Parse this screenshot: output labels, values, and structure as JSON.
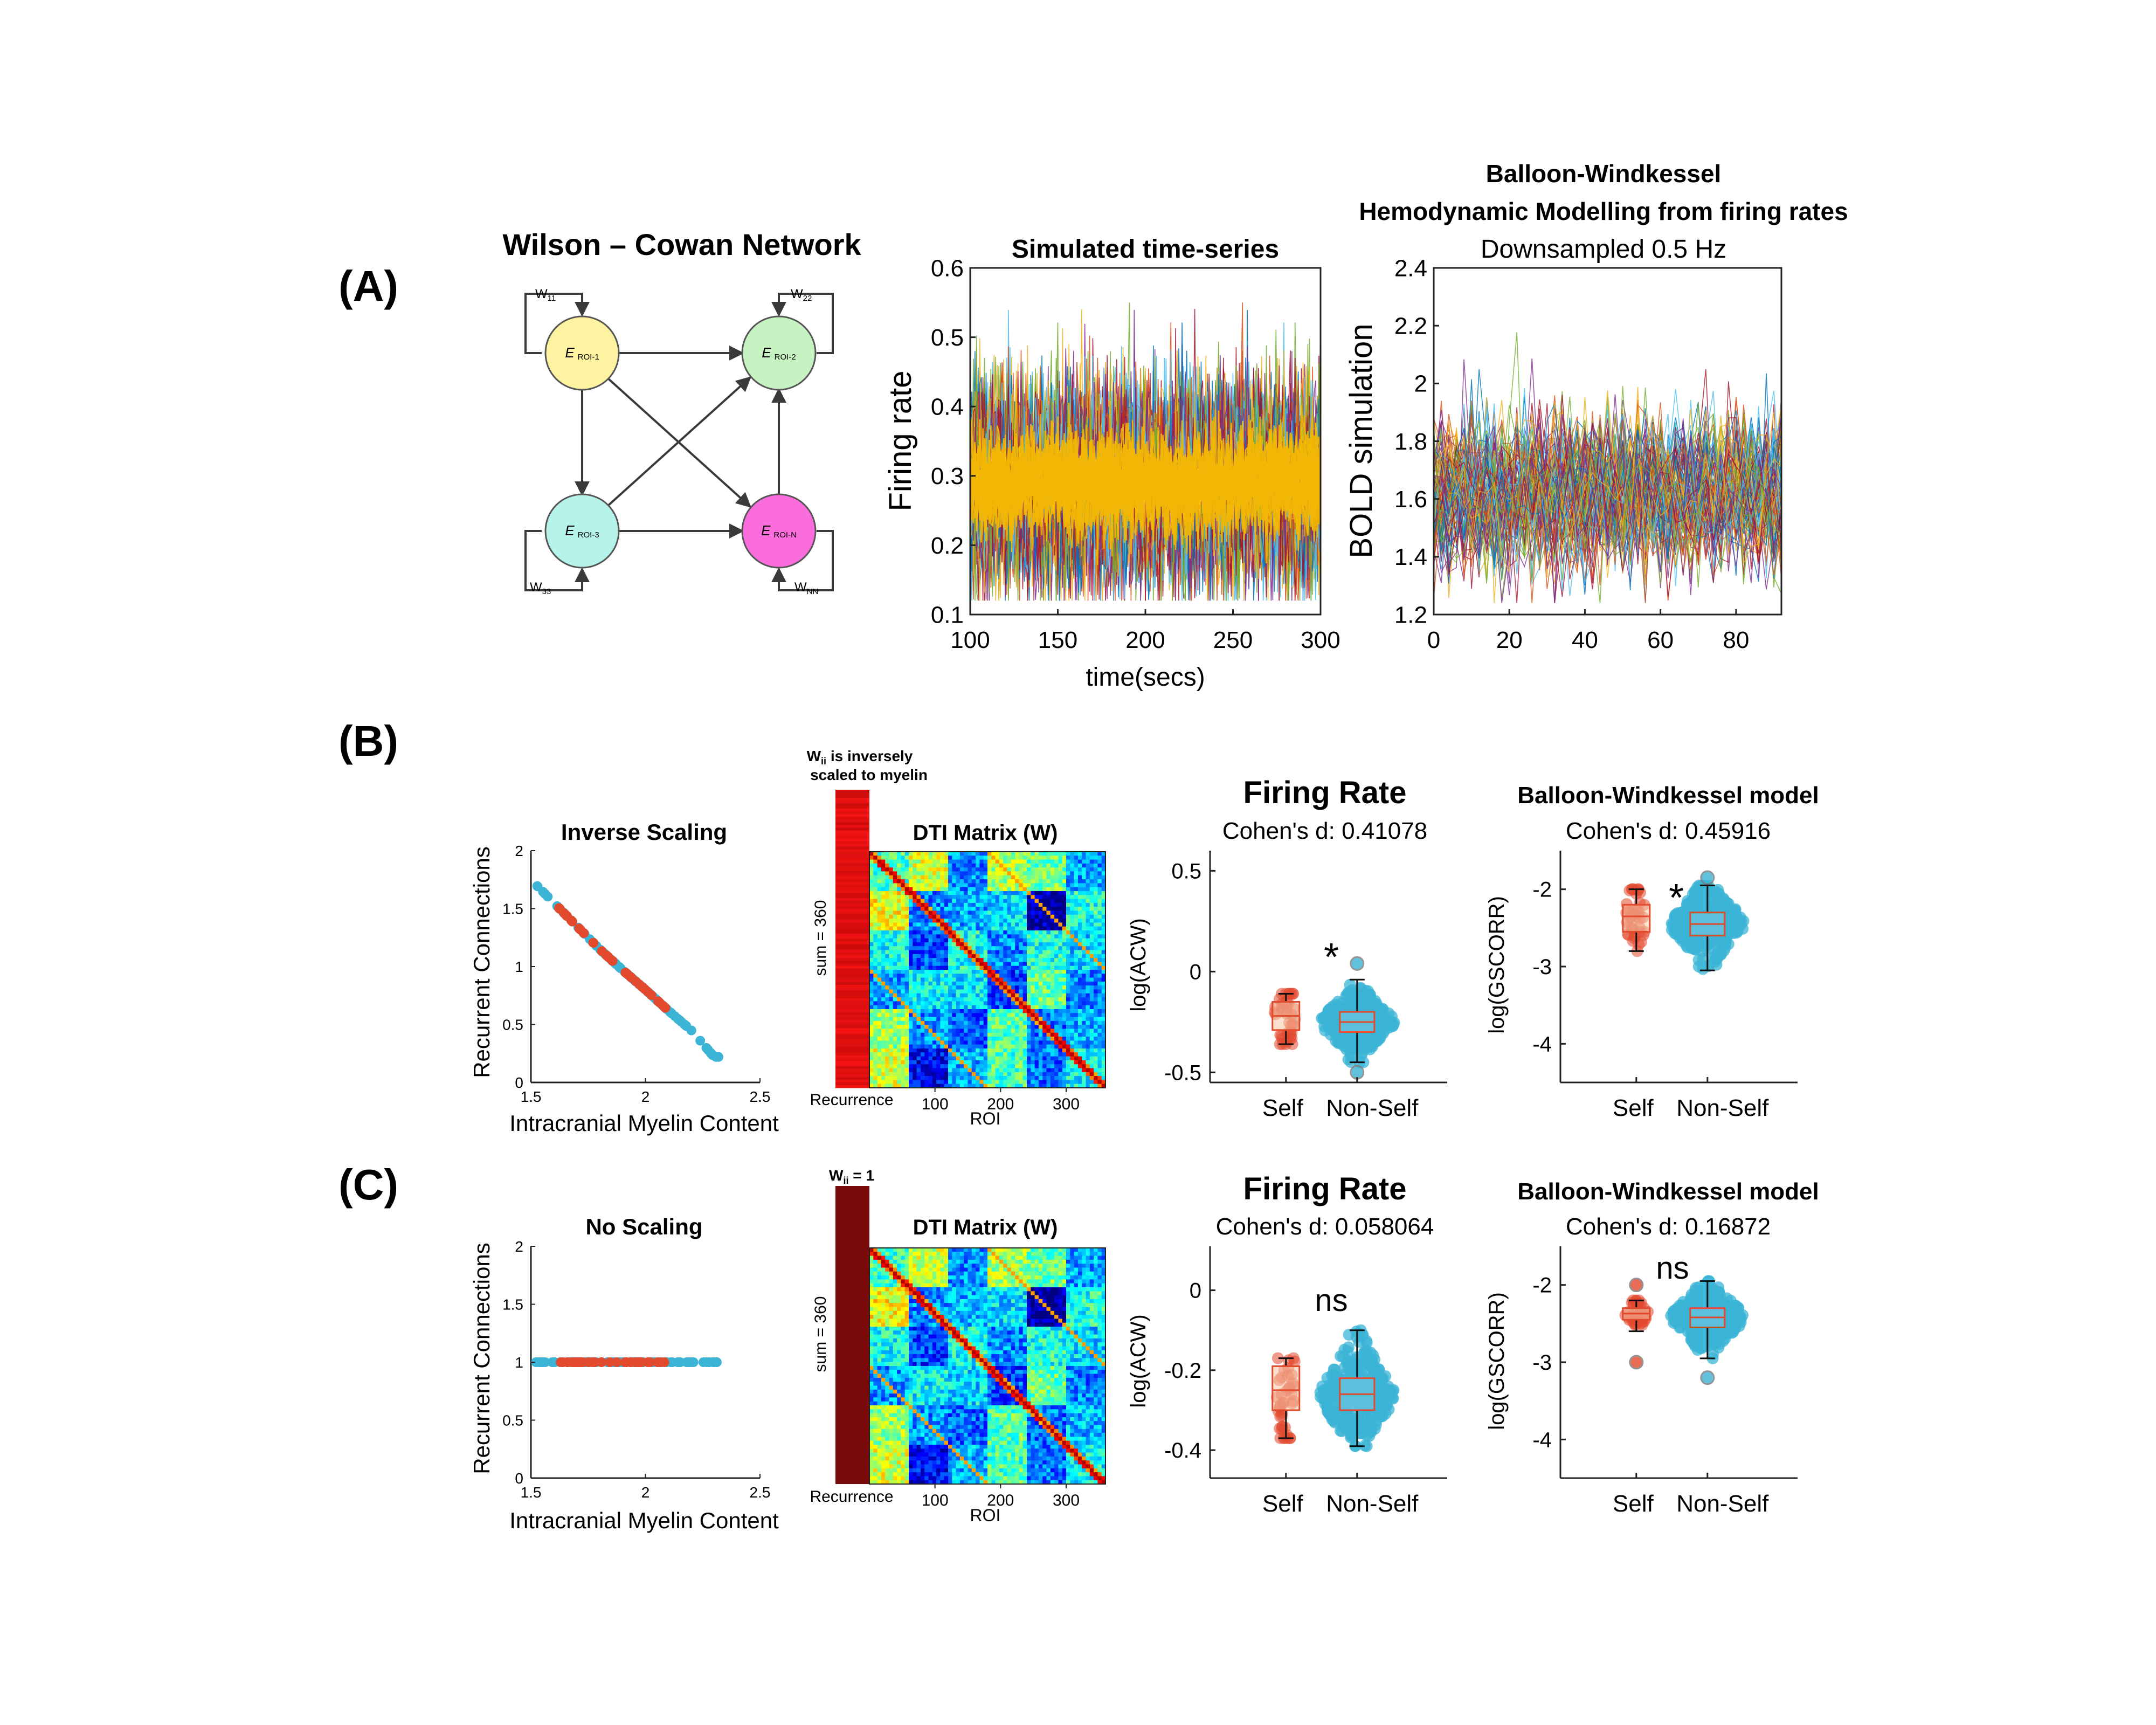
{
  "colors": {
    "self": "#e2492d",
    "nonself": "#3bb4d6",
    "firing_fill": "#f2b705",
    "node_roi1": "#fdf3a0",
    "node_roi2": "#c7f2c2",
    "node_roi3": "#b5f3eb",
    "node_roin": "#fb6cdc",
    "recurrence_b": "#c31616",
    "recurrence_c": "#7a0a0a"
  },
  "panel_labels": {
    "a": "(A)",
    "b": "(B)",
    "c": "(C)"
  },
  "network": {
    "title": "Wilson – Cowan Network",
    "nodes": [
      {
        "id": "roi1",
        "label": "E",
        "sub": "ROI-1",
        "weight": "W",
        "weight_sub": "11"
      },
      {
        "id": "roi2",
        "label": "E",
        "sub": "ROI-2",
        "weight": "W",
        "weight_sub": "22"
      },
      {
        "id": "roi3",
        "label": "E",
        "sub": "ROI-3",
        "weight": "W",
        "weight_sub": "33"
      },
      {
        "id": "roin",
        "label": "E",
        "sub": "ROI-N",
        "weight": "W",
        "weight_sub": "NN"
      }
    ]
  },
  "timeseries": {
    "title": "Simulated time-series",
    "xlabel": "time(secs)",
    "ylabel": "Firing rate",
    "xticks": [
      "100",
      "150",
      "200",
      "250",
      "300"
    ],
    "yticks": [
      "0.1",
      "0.2",
      "0.3",
      "0.4",
      "0.5",
      "0.6"
    ]
  },
  "bold": {
    "title1": "Balloon-Windkessel",
    "title2": "Hemodynamic Modelling from firing rates",
    "subtitle": "Downsampled 0.5 Hz",
    "ylabel": "BOLD simulation",
    "xticks": [
      "0",
      "20",
      "40",
      "60",
      "80"
    ],
    "yticks": [
      "1.2",
      "1.4",
      "1.6",
      "1.8",
      "2",
      "2.2",
      "2.4"
    ]
  },
  "row_b": {
    "scatter": {
      "title": "Inverse Scaling",
      "xlabel": "Intracranial Myelin Content",
      "ylabel": "Recurrent Connections"
    },
    "matrix": {
      "note1": "W",
      "note_sub": "ii",
      "note2": " is inversely",
      "note3": "scaled to myelin",
      "title": "DTI Matrix (W)",
      "side_label": "sum = 360",
      "recurrence": "Recurrence",
      "xlabel": "ROI",
      "xticks": [
        "100",
        "200",
        "300"
      ]
    },
    "box1": {
      "title": "Firing Rate",
      "subtitle": "Cohen's d: 0.41078",
      "ylabel": "log(ACW)",
      "xticks": [
        "Self",
        "Non-Self"
      ],
      "yticks": [
        "-0.5",
        "0",
        "0.5"
      ],
      "sig": "*"
    },
    "box2": {
      "title": "Balloon-Windkessel model",
      "subtitle": "Cohen's d: 0.45916",
      "ylabel": "log(GSCORR)",
      "xticks": [
        "Self",
        "Non-Self"
      ],
      "yticks": [
        "-4",
        "-3",
        "-2"
      ],
      "sig": "*"
    }
  },
  "row_c": {
    "scatter": {
      "title": "No Scaling",
      "xlabel": "Intracranial Myelin Content",
      "ylabel": "Recurrent Connections"
    },
    "matrix": {
      "note1": "W",
      "note_sub": "ii",
      "note2": " = 1",
      "title": "DTI Matrix (W)",
      "side_label": "sum = 360",
      "recurrence": "Recurrence",
      "xlabel": "ROI",
      "xticks": [
        "100",
        "200",
        "300"
      ]
    },
    "box1": {
      "title": "Firing Rate",
      "subtitle": "Cohen's d: 0.058064",
      "ylabel": "log(ACW)",
      "xticks": [
        "Self",
        "Non-Self"
      ],
      "yticks": [
        "-0.4",
        "-0.2",
        "0"
      ],
      "sig": "ns"
    },
    "box2": {
      "title": "Balloon-Windkessel model",
      "subtitle": "Cohen's d: 0.16872",
      "ylabel": "log(GSCORR)",
      "xticks": [
        "Self",
        "Non-Self"
      ],
      "yticks": [
        "-4",
        "-3",
        "-2"
      ],
      "sig": "ns"
    }
  },
  "chart_data": [
    {
      "type": "line",
      "id": "firing-timeseries",
      "title": "Simulated time-series",
      "xlabel": "time(secs)",
      "ylabel": "Firing rate",
      "xlim": [
        100,
        300
      ],
      "ylim": [
        0.1,
        0.6
      ],
      "series_summary": {
        "mean": 0.29,
        "min": 0.12,
        "max": 0.55
      }
    },
    {
      "type": "line",
      "id": "bold-timeseries",
      "title": "Balloon-Windkessel Hemodynamic Modelling from firing rates",
      "subtitle": "Downsampled 0.5 Hz",
      "ylabel": "BOLD simulation",
      "xlim": [
        0,
        92
      ],
      "ylim": [
        1.2,
        2.4
      ],
      "series_summary": {
        "mean": 1.62,
        "min": 1.24,
        "max": 2.22
      }
    },
    {
      "type": "scatter",
      "id": "scatter-b",
      "title": "Inverse Scaling",
      "xlabel": "Intracranial Myelin Content",
      "ylabel": "Recurrent Connections",
      "xlim": [
        1.5,
        2.5
      ],
      "ylim": [
        0,
        2
      ],
      "xticks": [
        1.5,
        2,
        2.5
      ],
      "yticks": [
        0,
        0.5,
        1,
        1.5,
        2
      ],
      "curve": [
        [
          1.5,
          1.75
        ],
        [
          1.6,
          1.55
        ],
        [
          1.7,
          1.35
        ],
        [
          1.8,
          1.15
        ],
        [
          1.9,
          0.97
        ],
        [
          2.0,
          0.8
        ],
        [
          2.1,
          0.62
        ],
        [
          2.2,
          0.45
        ],
        [
          2.3,
          0.22
        ]
      ],
      "self_x_range": [
        1.62,
        2.09
      ],
      "nonself_x_range": [
        1.52,
        2.32
      ]
    },
    {
      "type": "scatter",
      "id": "scatter-c",
      "title": "No Scaling",
      "xlabel": "Intracranial Myelin Content",
      "ylabel": "Recurrent Connections",
      "xlim": [
        1.5,
        2.5
      ],
      "ylim": [
        0,
        2
      ],
      "xticks": [
        1.5,
        2,
        2.5
      ],
      "yticks": [
        0,
        0.5,
        1,
        1.5,
        2
      ],
      "constant_y": 1,
      "self_x_range": [
        1.62,
        2.09
      ],
      "nonself_x_range": [
        1.52,
        2.32
      ]
    },
    {
      "type": "heatmap",
      "id": "dti-matrix-b",
      "title": "DTI Matrix (W)",
      "xlabel": "ROI",
      "size": 360,
      "xticks": [
        100,
        200,
        300
      ]
    },
    {
      "type": "heatmap",
      "id": "dti-matrix-c",
      "title": "DTI Matrix (W)",
      "xlabel": "ROI",
      "size": 360,
      "xticks": [
        100,
        200,
        300
      ]
    },
    {
      "type": "box",
      "id": "box-b1",
      "title": "Firing Rate",
      "subtitle": "Cohen's d: 0.41078",
      "ylabel": "log(ACW)",
      "ylim": [
        -0.55,
        0.6
      ],
      "yticks": [
        -0.5,
        0,
        0.5
      ],
      "groups": [
        {
          "name": "Self",
          "q1": -0.29,
          "median": -0.22,
          "q3": -0.15,
          "min": -0.36,
          "max": -0.11
        },
        {
          "name": "Non-Self",
          "q1": -0.3,
          "median": -0.25,
          "q3": -0.2,
          "min": -0.45,
          "max": -0.04,
          "outliers": [
            0.04,
            -0.5
          ]
        }
      ],
      "significance": "*"
    },
    {
      "type": "box",
      "id": "box-b2",
      "title": "Balloon-Windkessel model",
      "subtitle": "Cohen's d: 0.45916",
      "ylabel": "log(GSCORR)",
      "ylim": [
        -4.5,
        -1.5
      ],
      "yticks": [
        -4,
        -3,
        -2
      ],
      "groups": [
        {
          "name": "Self",
          "q1": -2.55,
          "median": -2.35,
          "q3": -2.2,
          "min": -2.8,
          "max": -2.0
        },
        {
          "name": "Non-Self",
          "q1": -2.6,
          "median": -2.45,
          "q3": -2.3,
          "min": -3.05,
          "max": -1.95,
          "outliers": [
            -1.85
          ]
        }
      ],
      "significance": "*"
    },
    {
      "type": "box",
      "id": "box-c1",
      "title": "Firing Rate",
      "subtitle": "Cohen's d: 0.058064",
      "ylabel": "log(ACW)",
      "ylim": [
        -0.47,
        0.11
      ],
      "yticks": [
        -0.4,
        -0.2,
        0
      ],
      "groups": [
        {
          "name": "Self",
          "q1": -0.3,
          "median": -0.25,
          "q3": -0.19,
          "min": -0.37,
          "max": -0.17
        },
        {
          "name": "Non-Self",
          "q1": -0.3,
          "median": -0.26,
          "q3": -0.22,
          "min": -0.39,
          "max": -0.1
        }
      ],
      "significance": "ns"
    },
    {
      "type": "box",
      "id": "box-c2",
      "title": "Balloon-Windkessel model",
      "subtitle": "Cohen's d: 0.16872",
      "ylabel": "log(GSCORR)",
      "ylim": [
        -4.5,
        -1.5
      ],
      "yticks": [
        -4,
        -3,
        -2
      ],
      "groups": [
        {
          "name": "Self",
          "q1": -2.45,
          "median": -2.37,
          "q3": -2.3,
          "min": -2.6,
          "max": -2.2,
          "outliers": [
            -2.0,
            -3.0
          ]
        },
        {
          "name": "Non-Self",
          "q1": -2.55,
          "median": -2.42,
          "q3": -2.3,
          "min": -2.95,
          "max": -1.95,
          "outliers": [
            -3.2
          ]
        }
      ],
      "significance": "ns"
    }
  ]
}
